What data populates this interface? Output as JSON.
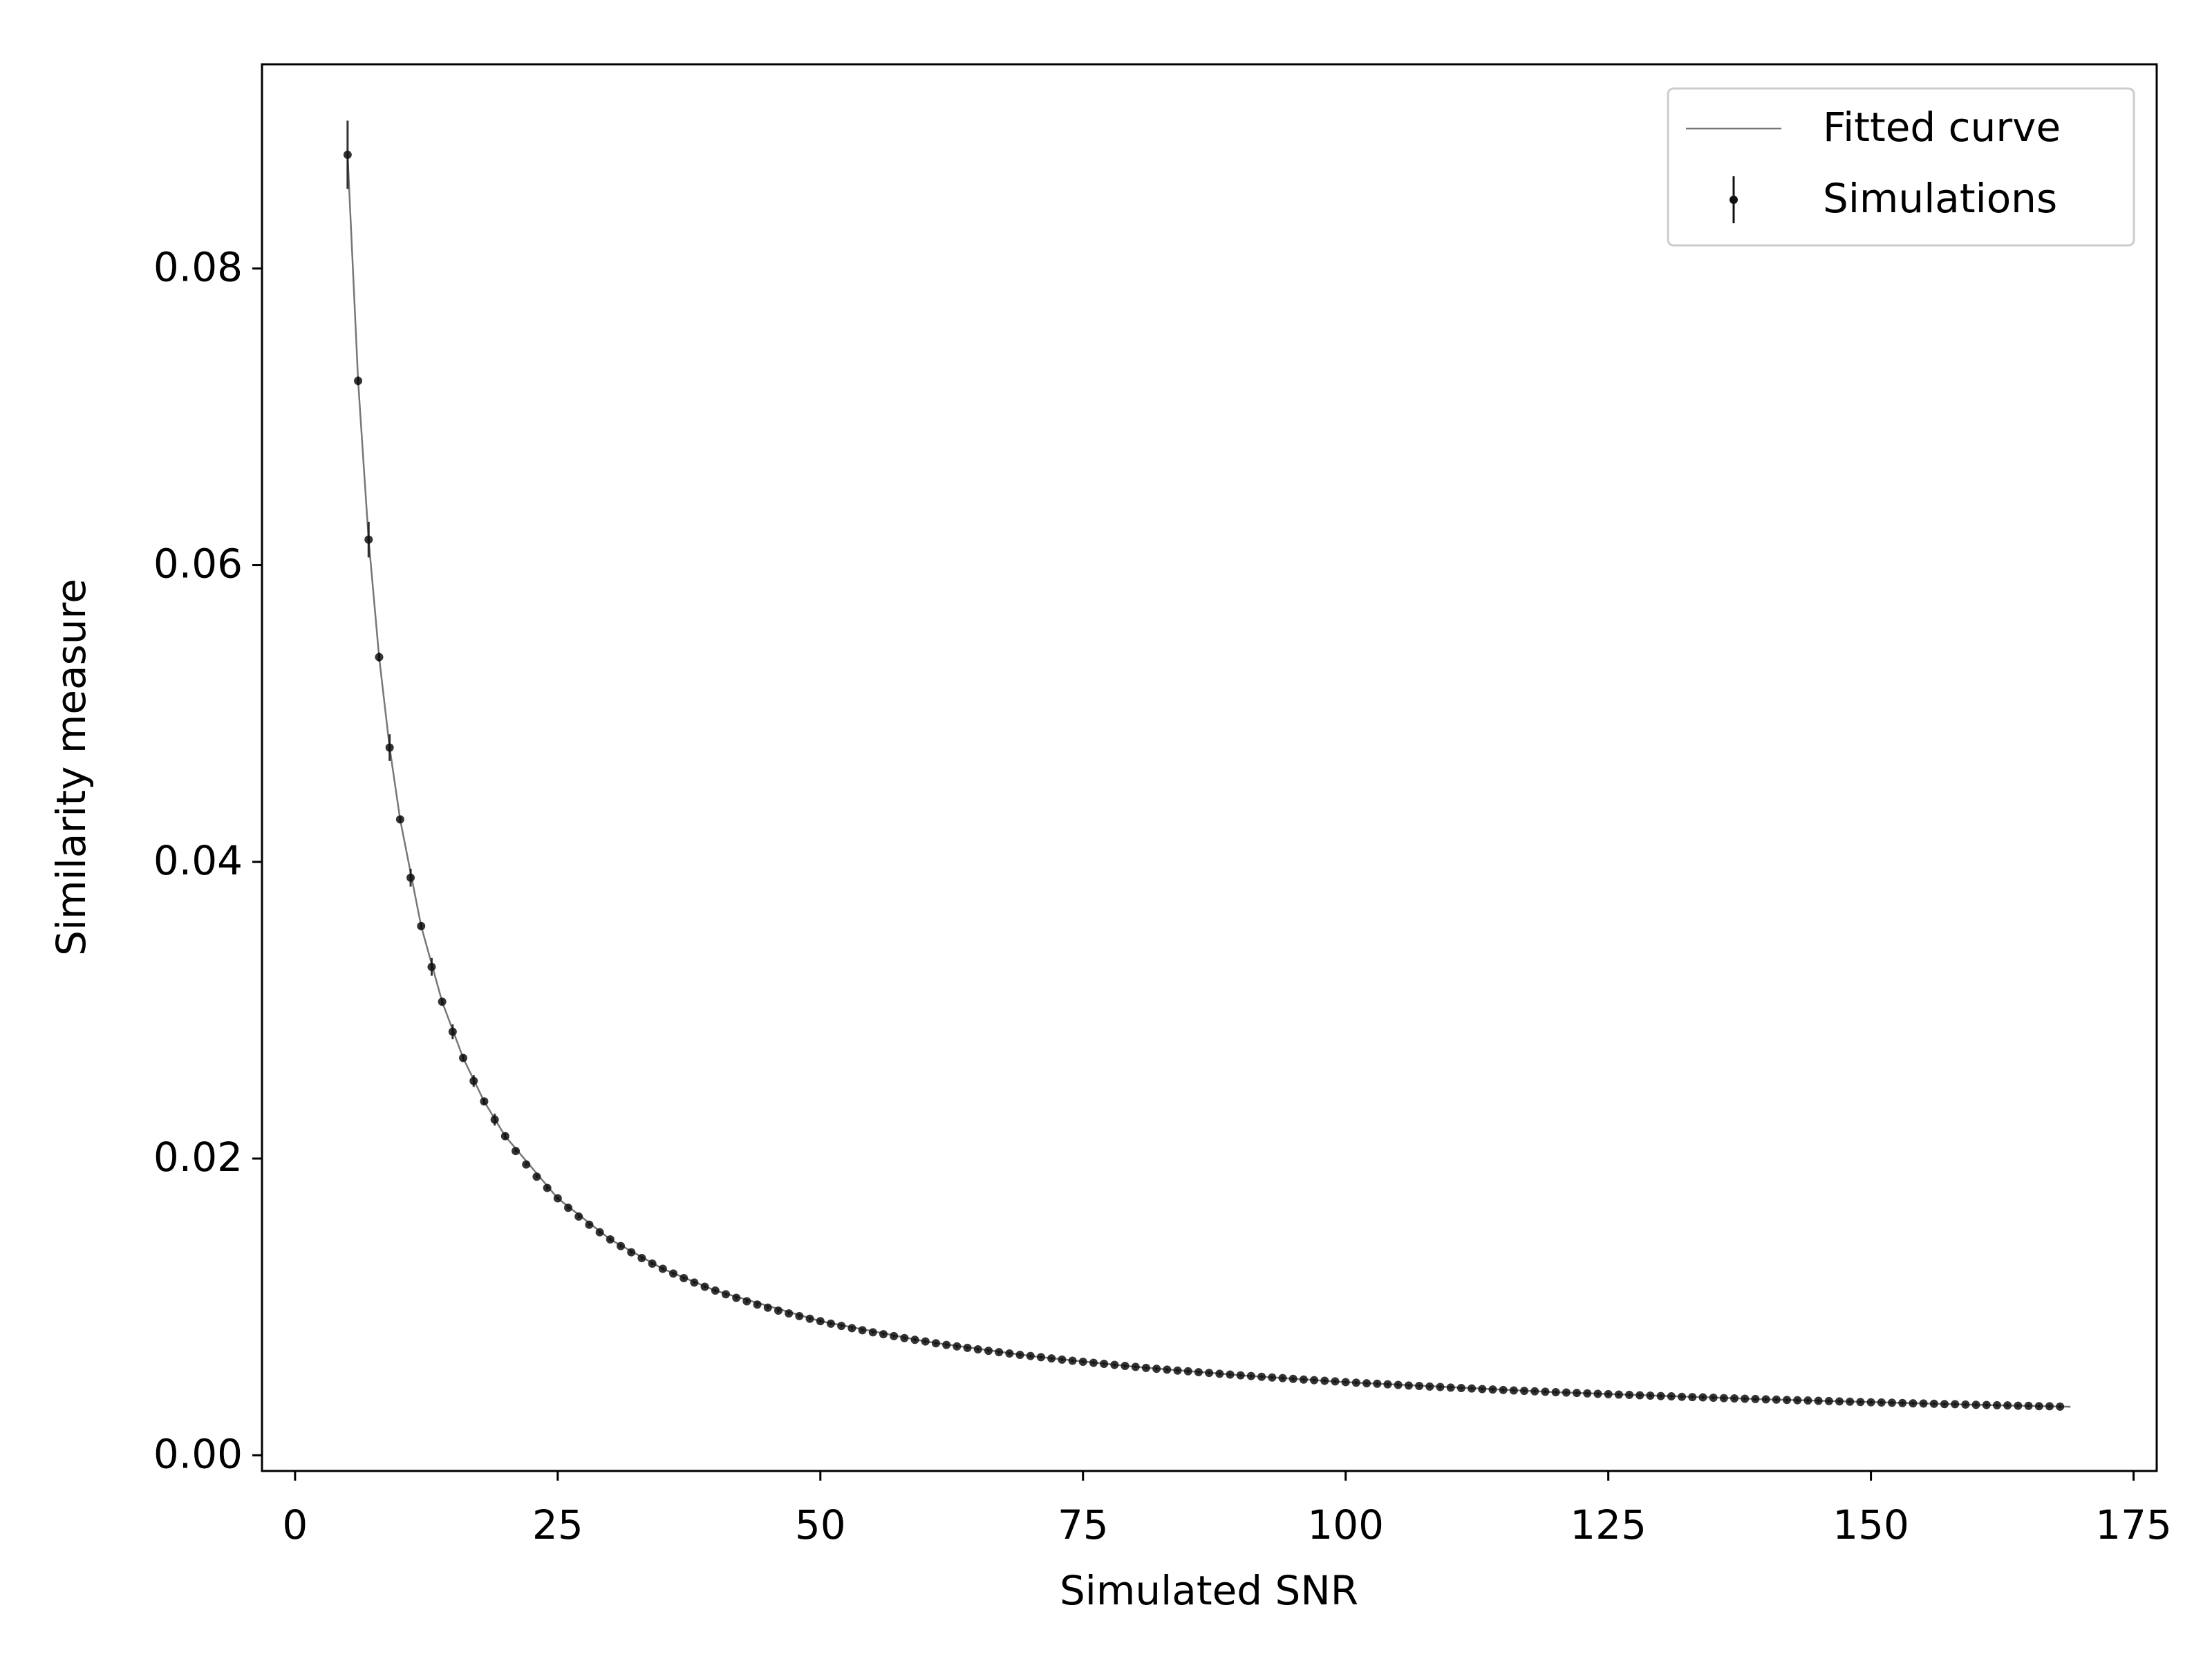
{
  "chart_data": {
    "type": "errorbar",
    "x_label": "Simulated SNR",
    "y_label": "Similarity measure",
    "xlim": [
      -3.15,
      177.2
    ],
    "ylim": [
      -0.00106,
      0.09376
    ],
    "xticks": [
      0,
      25,
      50,
      75,
      100,
      125,
      150,
      175
    ],
    "yticks": [
      {
        "value": 0,
        "label": "0.00"
      },
      0.02,
      0.04,
      0.06,
      0.08
    ],
    "legend": "upper right",
    "series": [
      {
        "name": "Fitted curve",
        "type": "line",
        "color": "#777777",
        "x": [
          5,
          6,
          7,
          8,
          9,
          10,
          12,
          14,
          16,
          18,
          20,
          25,
          30,
          35,
          40,
          50,
          60,
          70,
          80,
          90,
          100,
          120,
          140,
          160,
          169
        ],
        "values": [
          0.08766,
          0.07242,
          0.06172,
          0.0538,
          0.0477,
          0.04286,
          0.03567,
          0.03057,
          0.02678,
          0.02385,
          0.02151,
          0.01732,
          0.01455,
          0.01257,
          0.0111,
          0.00904,
          0.00767,
          0.00669,
          0.00596,
          0.00539,
          0.00493,
          0.00425,
          0.00377,
          0.0034,
          0.00327
        ]
      },
      {
        "name": "Simulations",
        "type": "errorbar",
        "color": "#111111",
        "x": [
          5,
          6,
          7,
          8,
          9,
          10,
          11,
          12,
          13,
          14,
          15,
          16,
          17,
          18,
          19,
          20,
          21,
          22,
          23,
          24,
          25,
          26,
          27,
          28,
          29,
          30,
          31,
          32,
          33,
          34,
          35,
          36,
          37,
          38,
          39,
          40,
          41,
          42,
          43,
          44,
          45,
          46,
          47,
          48,
          49,
          50,
          51,
          52,
          53,
          54,
          55,
          56,
          57,
          58,
          59,
          60,
          61,
          62,
          63,
          64,
          65,
          66,
          67,
          68,
          69,
          70,
          71,
          72,
          73,
          74,
          75,
          76,
          77,
          78,
          79,
          80,
          81,
          82,
          83,
          84,
          85,
          86,
          87,
          88,
          89,
          90,
          91,
          92,
          93,
          94,
          95,
          96,
          97,
          98,
          99,
          100,
          101,
          102,
          103,
          104,
          105,
          106,
          107,
          108,
          109,
          110,
          111,
          112,
          113,
          114,
          115,
          116,
          117,
          118,
          119,
          120,
          121,
          122,
          123,
          124,
          125,
          126,
          127,
          128,
          129,
          130,
          131,
          132,
          133,
          134,
          135,
          136,
          137,
          138,
          139,
          140,
          141,
          142,
          143,
          144,
          145,
          146,
          147,
          148,
          149,
          150,
          151,
          152,
          153,
          154,
          155,
          156,
          157,
          158,
          159,
          160,
          161,
          162,
          163,
          164,
          165,
          166,
          167,
          168
        ],
        "values": [
          0.08766,
          0.07242,
          0.06172,
          0.0538,
          0.0477,
          0.04286,
          0.03893,
          0.03567,
          0.03292,
          0.03057,
          0.02855,
          0.02678,
          0.02523,
          0.02385,
          0.02262,
          0.02151,
          0.02051,
          0.0196,
          0.01878,
          0.01802,
          0.01732,
          0.01668,
          0.01609,
          0.01554,
          0.01503,
          0.01455,
          0.0141,
          0.01368,
          0.01329,
          0.01292,
          0.01257,
          0.01225,
          0.01194,
          0.01164,
          0.01136,
          0.0111,
          0.01085,
          0.01061,
          0.01038,
          0.01016,
          0.00995,
          0.00975,
          0.00956,
          0.00938,
          0.0092,
          0.00904,
          0.00887,
          0.00872,
          0.00857,
          0.00843,
          0.00829,
          0.00816,
          0.00803,
          0.0079,
          0.00778,
          0.00767,
          0.00755,
          0.00744,
          0.00734,
          0.00724,
          0.00714,
          0.00704,
          0.00695,
          0.00686,
          0.00677,
          0.00669,
          0.00661,
          0.00653,
          0.00645,
          0.00637,
          0.0063,
          0.00623,
          0.00616,
          0.00609,
          0.00602,
          0.00596,
          0.00589,
          0.00583,
          0.00577,
          0.00571,
          0.00566,
          0.0056,
          0.00555,
          0.00549,
          0.00544,
          0.00539,
          0.00534,
          0.00529,
          0.00524,
          0.0052,
          0.00515,
          0.0051,
          0.00506,
          0.00502,
          0.00498,
          0.00493,
          0.00489,
          0.00485,
          0.00482,
          0.00478,
          0.00474,
          0.0047,
          0.00467,
          0.00463,
          0.0046,
          0.00456,
          0.00453,
          0.0045,
          0.00446,
          0.00443,
          0.0044,
          0.00437,
          0.00434,
          0.00431,
          0.00428,
          0.00425,
          0.00423,
          0.0042,
          0.00417,
          0.00414,
          0.00412,
          0.00409,
          0.00407,
          0.00404,
          0.00402,
          0.00399,
          0.00397,
          0.00394,
          0.00392,
          0.0039,
          0.00388,
          0.00385,
          0.00383,
          0.00381,
          0.00379,
          0.00377,
          0.00375,
          0.00373,
          0.00371,
          0.00369,
          0.00367,
          0.00365,
          0.00363,
          0.00361,
          0.00359,
          0.00357,
          0.00356,
          0.00354,
          0.00352,
          0.0035,
          0.00349,
          0.00347,
          0.00345,
          0.00344,
          0.00342,
          0.0034,
          0.00339,
          0.00337,
          0.00336,
          0.00334,
          0.00333,
          0.00331,
          0.0033,
          0.00328
        ],
        "errors": [
          0.0023,
          0.0003,
          0.0012,
          0.0003,
          0.0009,
          0.0002,
          0.0006,
          0.0002,
          0.0006,
          0.0002,
          0.0005,
          0.0002,
          0.0004,
          0.0002,
          0.0004,
          0.0002,
          0.0001,
          0.0001,
          0.0001,
          0.0001,
          0.0001,
          0.0001,
          0.0001,
          0.0001,
          0.0001,
          0.0001,
          0.0001,
          0.0001,
          0.0001,
          0.0001,
          0.0001,
          0.0001,
          0.0001,
          0.0001,
          0.0001,
          0.0001,
          0.0001,
          0.0001,
          0.0001,
          0.0001,
          0.0001,
          0.0001,
          0.0001,
          0.0001,
          0.0001,
          0.0001,
          0.0001,
          0.0001,
          0.0001,
          0.0001,
          0.0001,
          0.0001,
          0.0001,
          0.0001,
          0.0001,
          0.0001,
          0.0001,
          0.0001,
          0.0001,
          0.0001,
          0.0001,
          0.0001,
          0.0001,
          0.0001,
          0.0001,
          0.0001,
          0.0001,
          0.0001,
          0.0001,
          0.0001,
          0.0001,
          0.0001,
          0.0001,
          0.0001,
          0.0001,
          0.0001,
          0.0001,
          0.0001,
          0.0001,
          0.0001,
          0.0001,
          0.0001,
          0.0001,
          0.0001,
          0.0001,
          0.0001,
          0.0001,
          0.0001,
          0.0001,
          0.0001,
          0.0001,
          0.0001,
          0.0001,
          0.0001,
          0.0001,
          0.0001,
          0.0001,
          0.0001,
          0.0001,
          0.0001,
          0.0001,
          0.0001,
          0.0001,
          0.0001,
          0.0001,
          0.0001,
          0.0001,
          0.0001,
          0.0001,
          0.0001,
          0.0001,
          0.0001,
          0.0001,
          0.0001,
          0.0001,
          0.0001,
          0.0001,
          0.0001,
          0.0001,
          0.0001,
          0.0001,
          0.0001,
          0.0001,
          0.0001,
          0.0001,
          0.0001,
          0.0001,
          0.0001,
          0.0001,
          0.0001,
          0.0001,
          0.0001,
          0.0001,
          0.0001,
          0.0001,
          0.0001,
          0.0001,
          0.0001,
          0.0001,
          0.0001,
          0.0001,
          0.0001,
          0.0001,
          0.0001,
          0.0001,
          0.0001,
          0.0001,
          0.0001,
          0.0001,
          0.0001,
          0.0001,
          0.0001,
          0.0001,
          0.0001,
          0.0001,
          0.0001,
          0.0001,
          0.0001,
          0.0001,
          0.0001,
          0.0001,
          0.0001,
          0.0001,
          0.0001
        ]
      }
    ]
  }
}
